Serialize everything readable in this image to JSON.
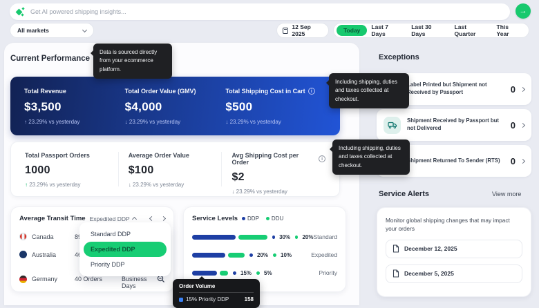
{
  "colors": {
    "accent_green": "#17c96e",
    "ddp_blue": "#1e3fa4",
    "ddu_green": "#17cd74",
    "kpi_card_gradient": [
      "#122254",
      "#2154d6"
    ],
    "tooltip_bg": "#1f2023"
  },
  "search": {
    "placeholder": "Get AI powered shipping insights..."
  },
  "filters": {
    "market_label": "All markets",
    "date_label": "12 Sep 2025",
    "ranges": [
      "Today",
      "Last 7 Days",
      "Last 30 Days",
      "Last Quarter",
      "This Year"
    ],
    "active_range": "Today"
  },
  "performance": {
    "title": "Current Performance",
    "info_tooltip": "Data is sourced directly from your ecommerce platform.",
    "primary_kpis": [
      {
        "label": "Total Revenue",
        "value": "$3,500",
        "arrow": "↑",
        "delta": "23.29% vs yesterday"
      },
      {
        "label": "Total Order Value (GMV)",
        "value": "$4,000",
        "arrow": "↓",
        "delta": "23.29% vs yesterday"
      },
      {
        "label": "Total Shipping Cost in Cart",
        "value": "$500",
        "arrow": "↓",
        "delta": "23.29% vs yesterday",
        "info_tooltip": "Including shipping, duties and taxes collected at checkout."
      }
    ],
    "secondary_kpis": [
      {
        "label": "Total Passport Orders",
        "value": "1000",
        "arrow": "↑",
        "delta": "23.29% vs yesterday"
      },
      {
        "label": "Average Order Value",
        "value": "$100",
        "arrow": "↓",
        "delta": "23.29% vs yesterday"
      },
      {
        "label": "Avg Shipping Cost per Order",
        "value": "$2",
        "arrow": "↓",
        "delta": "23.29% vs yesterday",
        "info_tooltip": "Including shipping, duties and taxes collected at checkout."
      }
    ]
  },
  "transit": {
    "title": "Average Transit Time",
    "selected_service": "Expedited DDP",
    "dropdown_options": [
      "Standard DDP",
      "Expedited DDP",
      "Priority DDP"
    ],
    "active_option": "Expedited DDP",
    "rows": [
      {
        "country": "Canada",
        "orders": "89 Orders",
        "days": ""
      },
      {
        "country": "Australia",
        "orders": "46 Orders",
        "days": ""
      },
      {
        "country": "Germany",
        "orders": "40 Orders",
        "days": "3.8 Business Days"
      }
    ]
  },
  "service_levels": {
    "title": "Service Levels",
    "legend": [
      {
        "name": "DDP"
      },
      {
        "name": "DDU"
      }
    ],
    "rows": [
      {
        "label": "Standard",
        "ddp": 30,
        "ddu": 20
      },
      {
        "label": "Expedited",
        "ddp": 20,
        "ddu": 10
      },
      {
        "label": "Priority",
        "ddp": 15,
        "ddu": 5
      }
    ]
  },
  "order_volume": {
    "title": "Order Volume",
    "label": "15% Priority DDP",
    "value": "158"
  },
  "exceptions": {
    "title": "Exceptions",
    "items": [
      {
        "label": "Label Printed but Shipment not Received by Passport",
        "count": "0"
      },
      {
        "label": "Shipment Received by Passport but not Delivered",
        "count": "0"
      },
      {
        "label": "Shipment Returned To Sender (RTS)",
        "count": "0"
      }
    ]
  },
  "service_alerts": {
    "title": "Service Alerts",
    "view_more": "View more",
    "description": "Monitor global shipping changes that may impact your orders",
    "dates": [
      "December 12, 2025",
      "December 5, 2025"
    ]
  }
}
